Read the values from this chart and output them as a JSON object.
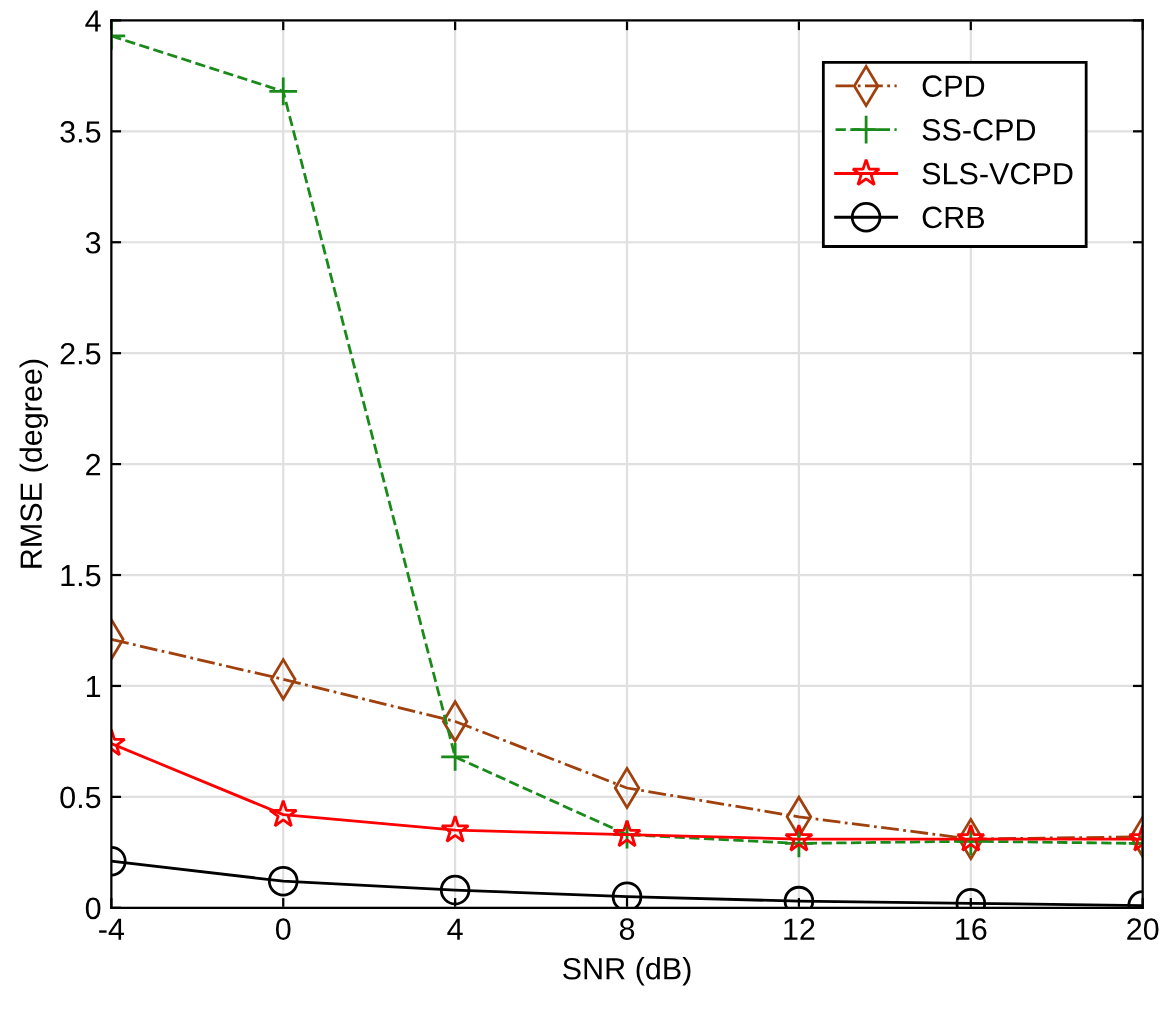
{
  "chart_data": {
    "type": "line",
    "xlabel": "SNR (dB)",
    "ylabel": "RMSE (degree)",
    "x": [
      -4,
      0,
      4,
      8,
      12,
      16,
      20
    ],
    "series": [
      {
        "name": "CPD",
        "color": "#a0410d",
        "values": [
          1.21,
          1.03,
          0.84,
          0.54,
          0.41,
          0.31,
          0.32
        ],
        "marker": "diamond",
        "line_style": "dashdot"
      },
      {
        "name": "SS-CPD",
        "color": "#1a8a1a",
        "values": [
          3.93,
          3.68,
          0.68,
          0.33,
          0.29,
          0.3,
          0.29
        ],
        "marker": "cross",
        "line_style": "dashed"
      },
      {
        "name": "SLS-VCPD",
        "color": "#ff0000",
        "values": [
          0.74,
          0.42,
          0.35,
          0.33,
          0.31,
          0.31,
          0.31
        ],
        "marker": "star",
        "line_style": "solid"
      },
      {
        "name": "CRB",
        "color": "#000000",
        "values": [
          0.21,
          0.12,
          0.08,
          0.05,
          0.03,
          0.02,
          0.01
        ],
        "marker": "circle",
        "line_style": "solid"
      }
    ],
    "xlim": [
      -4,
      20
    ],
    "xticks": [
      -4,
      0,
      4,
      8,
      12,
      16,
      20
    ],
    "ylim": [
      0,
      4
    ],
    "yticks": [
      0,
      0.5,
      1,
      1.5,
      2,
      2.5,
      3,
      3.5,
      4
    ],
    "grid": true,
    "legend": "top right"
  }
}
